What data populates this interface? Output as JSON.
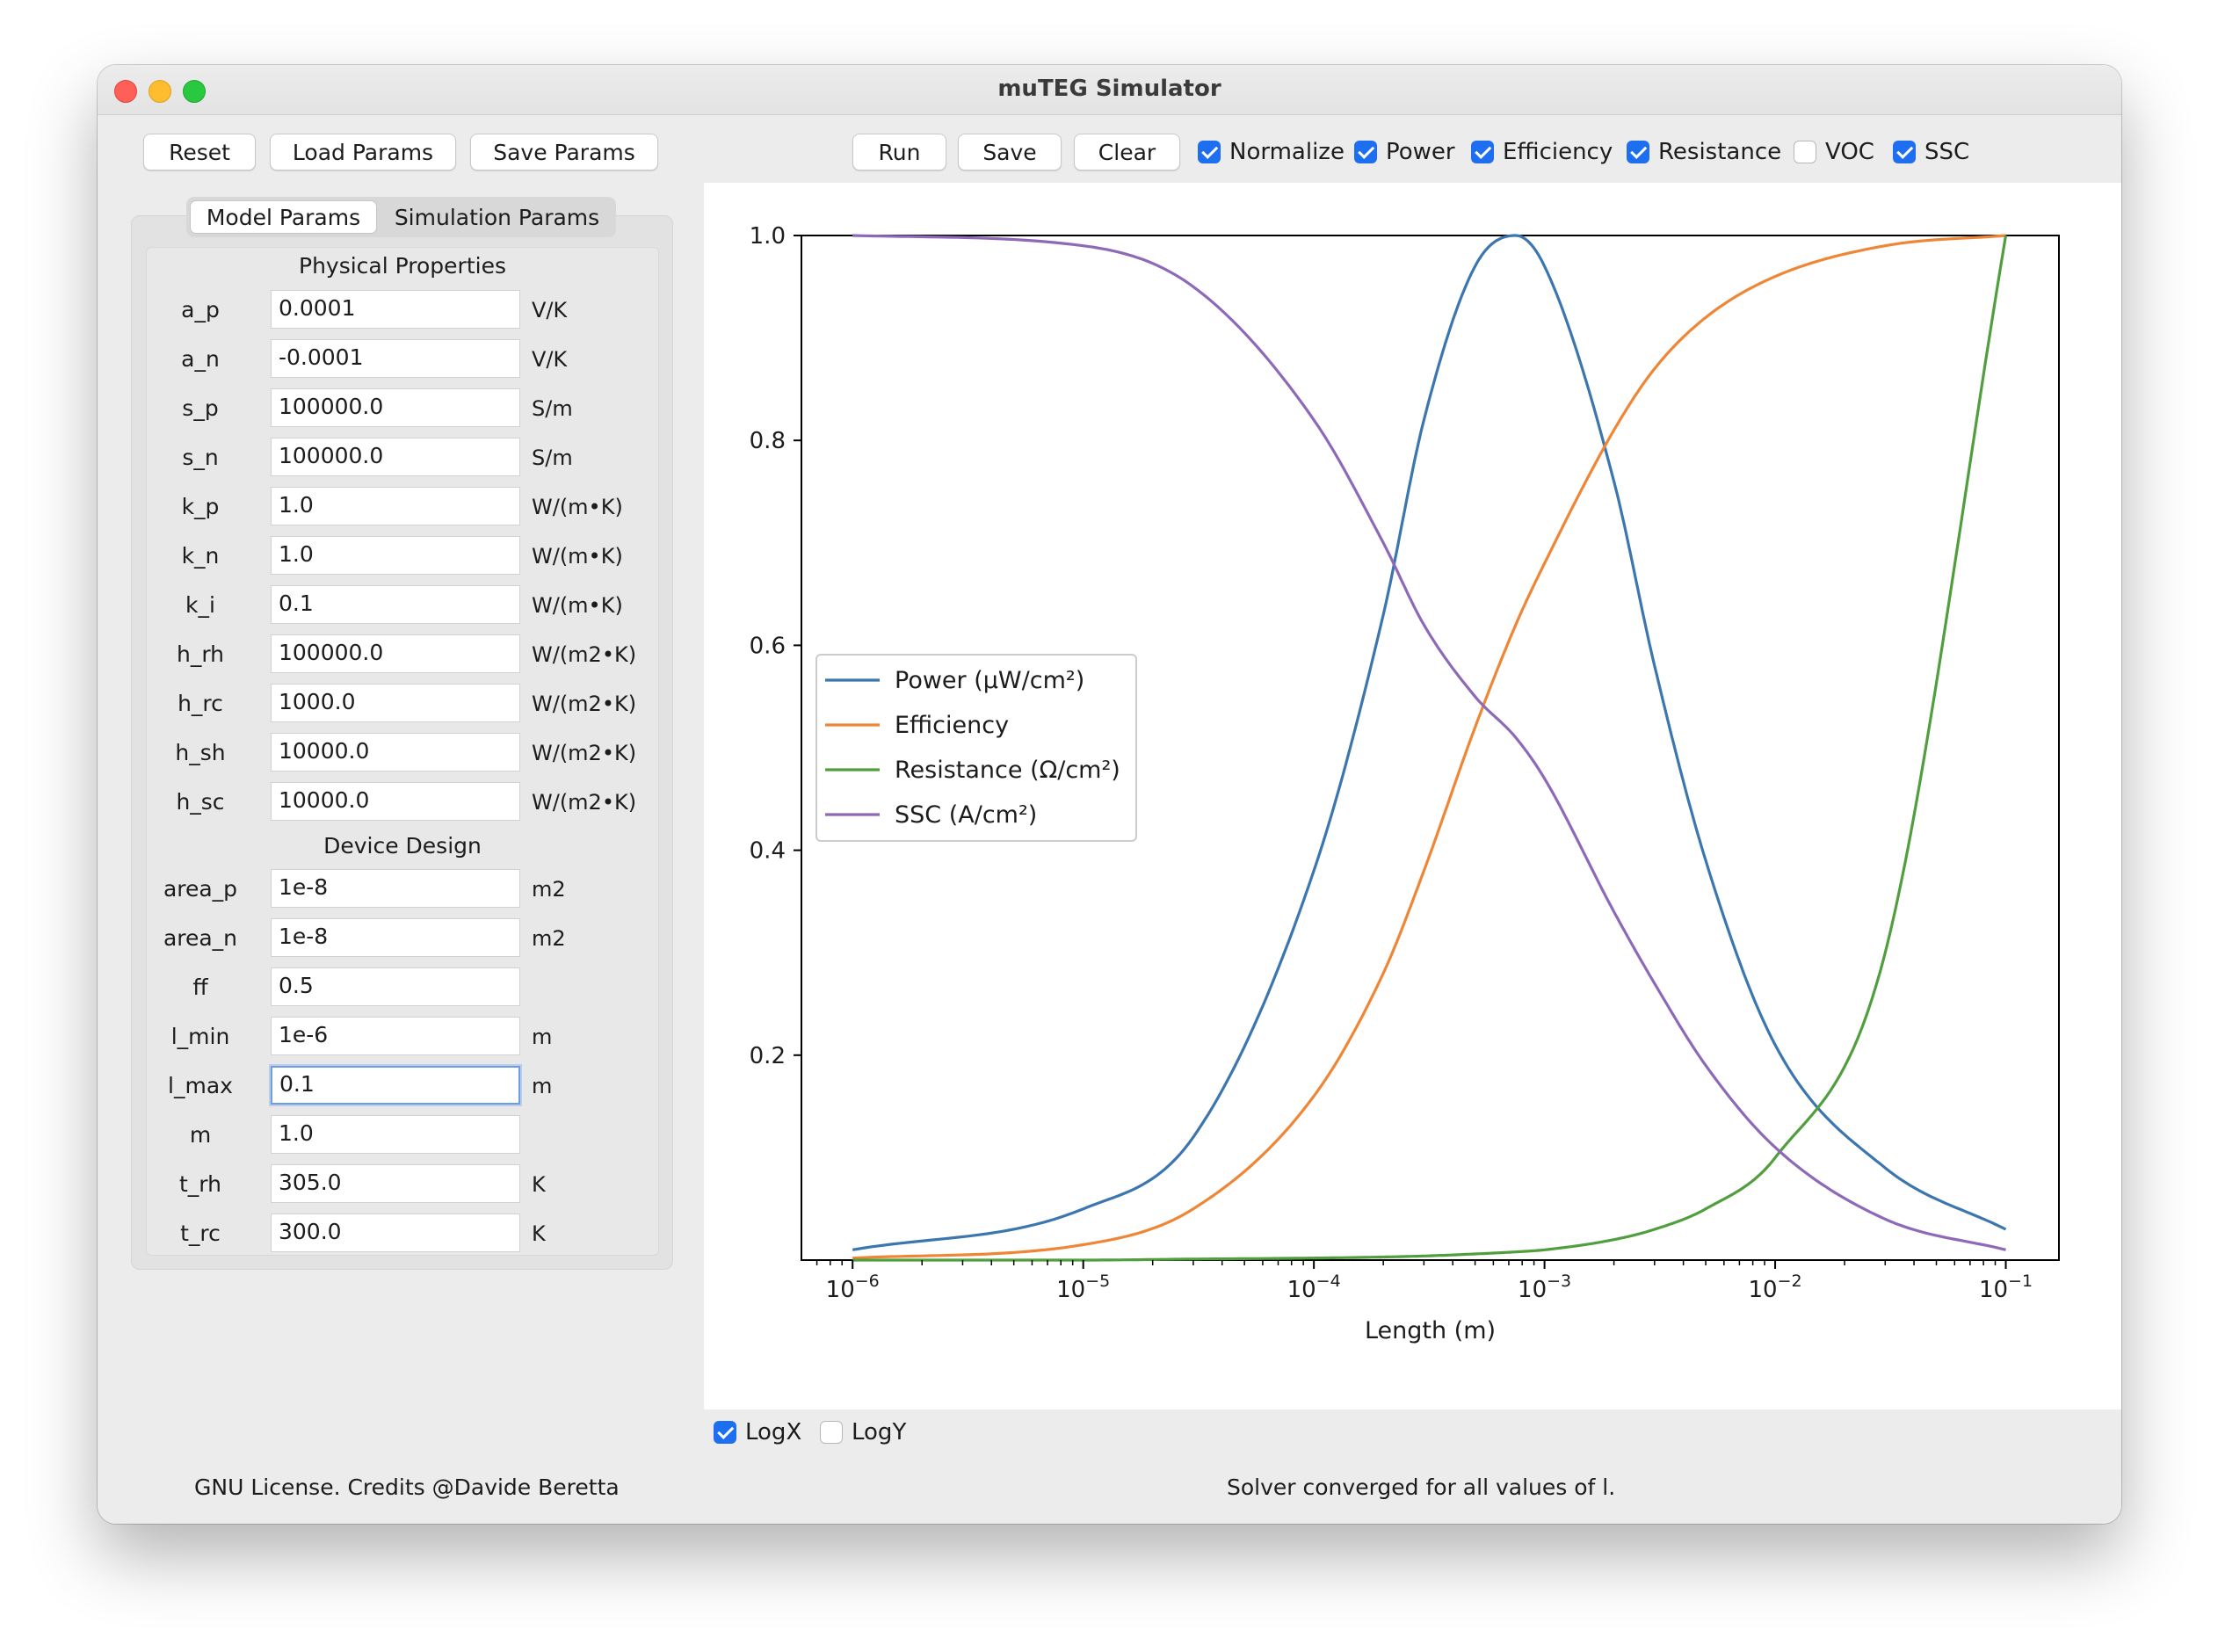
{
  "window": {
    "title": "muTEG Simulator"
  },
  "left_toolbar": {
    "reset": "Reset",
    "load_params": "Load Params",
    "save_params": "Save Params"
  },
  "right_toolbar": {
    "run": "Run",
    "save": "Save",
    "clear": "Clear",
    "checkboxes": [
      {
        "label": "Normalize",
        "checked": true
      },
      {
        "label": "Power",
        "checked": true
      },
      {
        "label": "Efficiency",
        "checked": true
      },
      {
        "label": "Resistance",
        "checked": true
      },
      {
        "label": "VOC",
        "checked": false
      },
      {
        "label": "SSC",
        "checked": true
      }
    ]
  },
  "tabs": {
    "model": "Model Params",
    "simulation": "Simulation Params",
    "active": "Model Params"
  },
  "physical": {
    "title": "Physical Properties",
    "params": [
      {
        "name": "a_p",
        "value": "0.0001",
        "unit": "V/K"
      },
      {
        "name": "a_n",
        "value": "-0.0001",
        "unit": "V/K"
      },
      {
        "name": "s_p",
        "value": "100000.0",
        "unit": "S/m"
      },
      {
        "name": "s_n",
        "value": "100000.0",
        "unit": "S/m"
      },
      {
        "name": "k_p",
        "value": "1.0",
        "unit": "W/(m•K)"
      },
      {
        "name": "k_n",
        "value": "1.0",
        "unit": "W/(m•K)"
      },
      {
        "name": "k_i",
        "value": "0.1",
        "unit": "W/(m•K)"
      },
      {
        "name": "h_rh",
        "value": "100000.0",
        "unit": "W/(m2•K)"
      },
      {
        "name": "h_rc",
        "value": "1000.0",
        "unit": "W/(m2•K)"
      },
      {
        "name": "h_sh",
        "value": "10000.0",
        "unit": "W/(m2•K)"
      },
      {
        "name": "h_sc",
        "value": "10000.0",
        "unit": "W/(m2•K)"
      }
    ]
  },
  "device": {
    "title": "Device Design",
    "params": [
      {
        "name": "area_p",
        "value": "1e-8",
        "unit": "m2"
      },
      {
        "name": "area_n",
        "value": "1e-8",
        "unit": "m2"
      },
      {
        "name": "ff",
        "value": "0.5",
        "unit": ""
      },
      {
        "name": "l_min",
        "value": "1e-6",
        "unit": "m"
      },
      {
        "name": "l_max",
        "value": "0.1",
        "unit": "m"
      },
      {
        "name": "m",
        "value": "1.0",
        "unit": ""
      },
      {
        "name": "t_rh",
        "value": "305.0",
        "unit": "K"
      },
      {
        "name": "t_rc",
        "value": "300.0",
        "unit": "K"
      }
    ]
  },
  "plot_options": {
    "logx_label": "LogX",
    "logx_checked": true,
    "logy_label": "LogY",
    "logy_checked": false
  },
  "footer": {
    "credits": "GNU License. Credits @Davide Beretta",
    "status": "Solver converged for all values of l."
  },
  "colors": {
    "power": "#3b76af",
    "efficiency": "#ef8636",
    "resistance": "#519e3e",
    "ssc": "#8d69b8",
    "accent": "#1e6ff0"
  },
  "chart_data": {
    "type": "line",
    "xlabel": "Length (m)",
    "x_scale": "log",
    "xlim": [
      6e-07,
      0.17
    ],
    "ylim": [
      0.0,
      1.0
    ],
    "x_ticks": [
      "10^-6",
      "10^-5",
      "10^-4",
      "10^-3",
      "10^-2",
      "10^-1"
    ],
    "y_ticks": [
      "0.2",
      "0.4",
      "0.6",
      "0.8",
      "1.0"
    ],
    "legend_position": "center-left",
    "grid": false,
    "x": [
      1e-06,
      1e-05,
      3e-05,
      0.0001,
      0.0002,
      0.0003,
      0.0005,
      0.00075,
      0.001,
      0.002,
      0.003,
      0.005,
      0.01,
      0.03,
      0.1
    ],
    "series": [
      {
        "name": "Power (μW/cm²)",
        "color_key": "power",
        "values": [
          0.01,
          0.05,
          0.12,
          0.38,
          0.63,
          0.82,
          0.97,
          1.0,
          0.97,
          0.76,
          0.58,
          0.39,
          0.21,
          0.09,
          0.03
        ]
      },
      {
        "name": "Efficiency",
        "color_key": "efficiency",
        "values": [
          0.002,
          0.015,
          0.05,
          0.16,
          0.28,
          0.38,
          0.52,
          0.62,
          0.68,
          0.81,
          0.87,
          0.92,
          0.96,
          0.99,
          1.0
        ]
      },
      {
        "name": "Resistance (Ω/cm²)",
        "color_key": "resistance",
        "values": [
          0.0,
          0.0,
          0.001,
          0.002,
          0.003,
          0.004,
          0.006,
          0.008,
          0.01,
          0.02,
          0.03,
          0.05,
          0.1,
          0.3,
          1.0
        ]
      },
      {
        "name": "SSC (A/cm²)",
        "color_key": "ssc",
        "values": [
          1.0,
          0.99,
          0.95,
          0.82,
          0.7,
          0.62,
          0.55,
          0.51,
          0.47,
          0.34,
          0.27,
          0.19,
          0.11,
          0.04,
          0.01
        ]
      }
    ]
  }
}
